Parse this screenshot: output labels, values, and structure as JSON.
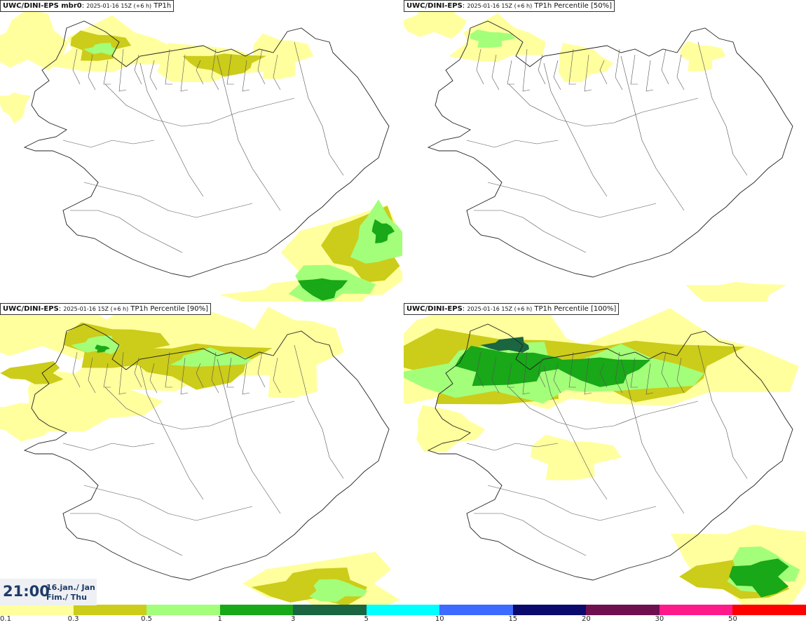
{
  "panels": [
    {
      "model": "UWC/DINI-EPS",
      "member": " mbr0",
      "run": "2025-01-16 15Z (+6 h)",
      "field": "TP1h",
      "variant": "light"
    },
    {
      "model": "UWC/DINI-EPS",
      "member": "",
      "run": "2025-01-16 15Z (+6 h)",
      "field": "TP1h Percentile [50%]",
      "variant": "lighter"
    },
    {
      "model": "UWC/DINI-EPS",
      "member": "",
      "run": "2025-01-16 15Z (+6 h)",
      "field": "TP1h Percentile [90%]",
      "variant": "medium"
    },
    {
      "model": "UWC/DINI-EPS",
      "member": "",
      "run": "2025-01-16 15Z (+6 h)",
      "field": "TP1h Percentile [100%]",
      "variant": "heavy"
    }
  ],
  "time": {
    "clock": "21:00",
    "date_line1": "16.jan./ Jan",
    "date_line2": "Fim./ Thu"
  },
  "legend": {
    "colors": [
      "#ffff9e",
      "#cccc1a",
      "#a3ff7a",
      "#18a818",
      "#1a6640",
      "#00ffff",
      "#3d6bff",
      "#0a0a6e",
      "#6e1050",
      "#ff1a8c",
      "#ff0000"
    ],
    "labels": [
      "0.1",
      "0.3",
      "0.5",
      "1",
      "3",
      "5",
      "10",
      "15",
      "20",
      "30",
      "50"
    ]
  }
}
